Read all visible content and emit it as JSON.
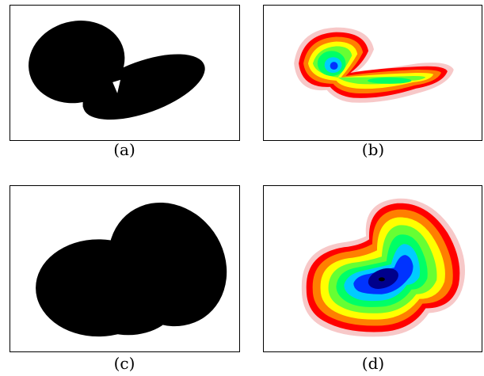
{
  "captions": {
    "a": "(a)",
    "b": "(b)",
    "c": "(c)",
    "d": "(d)"
  },
  "colors": {
    "mask": "#000000",
    "border": "#000000",
    "heat_scale": [
      "#f7c8c8",
      "#ff0000",
      "#ff7f00",
      "#ffff00",
      "#66ff33",
      "#00ff66",
      "#00ccff",
      "#0033ff",
      "#00008b",
      "#000000"
    ]
  }
}
